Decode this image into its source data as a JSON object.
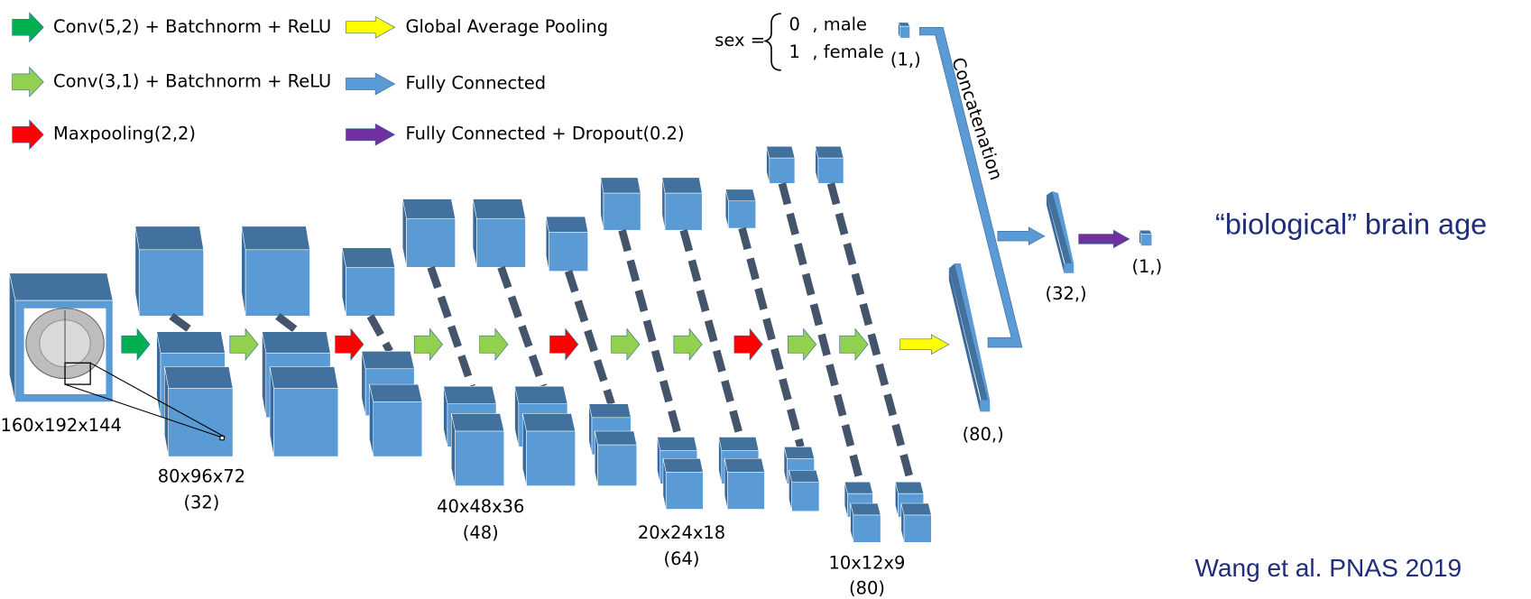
{
  "legend": [
    {
      "label": "Conv(5,2) + Batchnorm + ReLU"
    },
    {
      "label": "Conv(3,1) + Batchnorm + ReLU"
    },
    {
      "label": "Maxpooling(2,2)"
    },
    {
      "label": "Global Average Pooling"
    },
    {
      "label": "Fully Connected"
    },
    {
      "label": "Fully Connected + Dropout(0.2)"
    }
  ],
  "sex_encoding": {
    "label": "sex =",
    "options": [
      {
        "value": "0",
        "label": ", male"
      },
      {
        "value": "1",
        "label": ", female"
      }
    ],
    "shape": "(1,)"
  },
  "concatenation": "Concatenation",
  "stages": [
    {
      "size": "160x192x144"
    },
    {
      "size": "80x96x72",
      "channels": "(32)"
    },
    {
      "size": "40x48x36",
      "channels": "(48)"
    },
    {
      "size": "20x24x18",
      "channels": "(64)"
    },
    {
      "size": "10x12x9",
      "channels": "(80)"
    }
  ],
  "outputs": [
    "(80,)",
    "(32,)",
    "(1,)"
  ],
  "result": "“biological” brain age",
  "citation": "Wang et al. PNAS 2019"
}
